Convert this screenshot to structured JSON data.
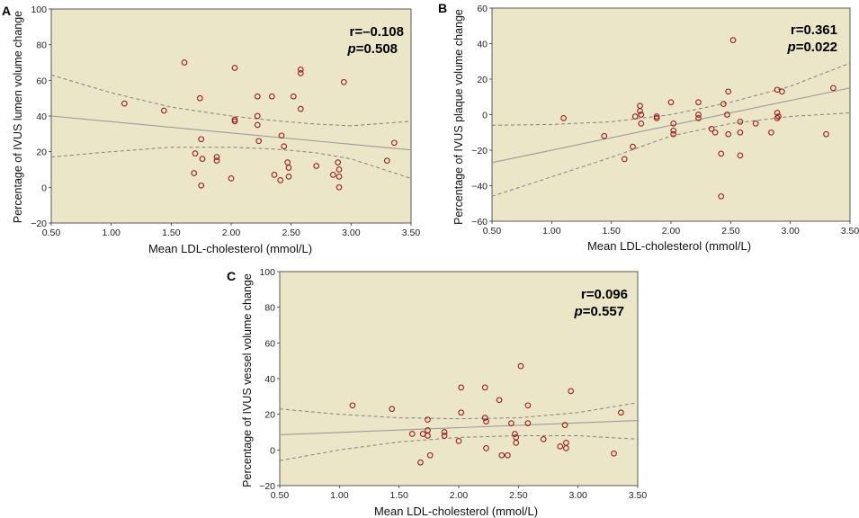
{
  "colors": {
    "plot_bg": "#ece6c9",
    "point": "#9b1b1b",
    "fit_line": "#9a9a9a",
    "ci_line": "#808080",
    "axis": "#333333"
  },
  "chart_data": [
    {
      "panel": "A",
      "type": "scatter",
      "xlabel": "Mean LDL-cholesterol (mmol/L)",
      "ylabel": "Percentage of IVUS lumen volume change",
      "xlim": [
        0.5,
        3.5
      ],
      "ylim": [
        -20,
        100
      ],
      "xticks": [
        "0.50",
        "1.00",
        "1.50",
        "2.00",
        "2.50",
        "3.00",
        "3.50"
      ],
      "yticks": [
        "−20",
        "0",
        "20",
        "40",
        "60",
        "80",
        "100"
      ],
      "stat_r": "r=–0.108",
      "stat_p": "p",
      "stat_p_value": "=0.508",
      "fit": {
        "x": [
          0.5,
          3.5
        ],
        "y": [
          40,
          21
        ]
      },
      "ci_upper": {
        "x": [
          0.5,
          1.0,
          1.5,
          2.0,
          2.35,
          2.7,
          3.0,
          3.5
        ],
        "y": [
          63,
          53,
          45,
          40,
          37.5,
          35.5,
          34.5,
          37
        ]
      },
      "ci_lower": {
        "x": [
          0.5,
          1.0,
          1.5,
          2.0,
          2.35,
          2.7,
          3.0,
          3.5
        ],
        "y": [
          17,
          20,
          22.5,
          22.5,
          21.5,
          19.5,
          16,
          5
        ]
      },
      "points": [
        [
          1.11,
          47
        ],
        [
          1.44,
          43
        ],
        [
          1.61,
          70
        ],
        [
          1.69,
          8
        ],
        [
          1.7,
          19
        ],
        [
          1.74,
          50
        ],
        [
          1.75,
          27
        ],
        [
          1.75,
          1
        ],
        [
          1.76,
          16
        ],
        [
          1.88,
          17
        ],
        [
          1.88,
          15
        ],
        [
          2.0,
          5
        ],
        [
          2.03,
          67
        ],
        [
          2.03,
          38
        ],
        [
          2.03,
          37
        ],
        [
          2.22,
          51
        ],
        [
          2.22,
          40
        ],
        [
          2.22,
          35
        ],
        [
          2.23,
          26
        ],
        [
          2.34,
          51
        ],
        [
          2.36,
          7
        ],
        [
          2.41,
          4
        ],
        [
          2.42,
          29
        ],
        [
          2.44,
          23
        ],
        [
          2.47,
          14
        ],
        [
          2.48,
          11
        ],
        [
          2.48,
          6
        ],
        [
          2.52,
          51
        ],
        [
          2.58,
          66
        ],
        [
          2.58,
          64
        ],
        [
          2.58,
          44
        ],
        [
          2.71,
          12
        ],
        [
          2.85,
          7
        ],
        [
          2.89,
          14
        ],
        [
          2.9,
          10
        ],
        [
          2.9,
          6
        ],
        [
          2.9,
          0
        ],
        [
          2.94,
          59
        ],
        [
          3.3,
          15
        ],
        [
          3.36,
          25
        ]
      ]
    },
    {
      "panel": "B",
      "type": "scatter",
      "xlabel": "Mean LDL-cholesterol (mmol/L)",
      "ylabel": "Percentage of IVUS plaque volume change",
      "xlim": [
        0.5,
        3.5
      ],
      "ylim": [
        -60,
        60
      ],
      "xticks": [
        "0.50",
        "1.00",
        "1.50",
        "2.00",
        "2.50",
        "3.00",
        "3.50"
      ],
      "yticks": [
        "−60",
        "−40",
        "−20",
        "0",
        "20",
        "40",
        "60"
      ],
      "stat_r": "r=0.361",
      "stat_p": "p",
      "stat_p_value": "=0.022",
      "fit": {
        "x": [
          0.5,
          3.5
        ],
        "y": [
          -27,
          15
        ]
      },
      "ci_upper": {
        "x": [
          0.5,
          1.0,
          1.5,
          2.0,
          2.5,
          3.0,
          3.5
        ],
        "y": [
          -6,
          -5.5,
          -4,
          0,
          7,
          16,
          29
        ]
      },
      "ci_lower": {
        "x": [
          0.5,
          1.0,
          1.5,
          2.0,
          2.5,
          3.0,
          3.5
        ],
        "y": [
          -46,
          -35,
          -24,
          -12,
          -5,
          -1,
          1
        ]
      },
      "points": [
        [
          1.1,
          -2
        ],
        [
          1.44,
          -12
        ],
        [
          1.61,
          -25
        ],
        [
          1.68,
          -18
        ],
        [
          1.7,
          -1
        ],
        [
          1.74,
          5
        ],
        [
          1.74,
          2
        ],
        [
          1.75,
          0
        ],
        [
          1.75,
          -5
        ],
        [
          1.88,
          -1
        ],
        [
          1.88,
          -2
        ],
        [
          2.0,
          7
        ],
        [
          2.02,
          -5
        ],
        [
          2.02,
          -9
        ],
        [
          2.02,
          -11
        ],
        [
          2.23,
          7
        ],
        [
          2.23,
          0
        ],
        [
          2.23,
          -2
        ],
        [
          2.34,
          -8
        ],
        [
          2.37,
          -10
        ],
        [
          2.42,
          -22
        ],
        [
          2.42,
          -46
        ],
        [
          2.44,
          6
        ],
        [
          2.47,
          0
        ],
        [
          2.48,
          13
        ],
        [
          2.48,
          -11
        ],
        [
          2.52,
          42
        ],
        [
          2.58,
          -4
        ],
        [
          2.58,
          -10
        ],
        [
          2.58,
          -23
        ],
        [
          2.71,
          -5
        ],
        [
          2.84,
          -10
        ],
        [
          2.89,
          14
        ],
        [
          2.89,
          1
        ],
        [
          2.89,
          -2
        ],
        [
          2.9,
          -1
        ],
        [
          2.93,
          13
        ],
        [
          3.3,
          -11
        ],
        [
          3.36,
          15
        ]
      ]
    },
    {
      "panel": "C",
      "type": "scatter",
      "xlabel": "Mean LDL-cholesterol (mmol/L)",
      "ylabel": "Percentage of IVUS vessel volume change",
      "xlim": [
        0.5,
        3.5
      ],
      "ylim": [
        -20,
        100
      ],
      "xticks": [
        "0.50",
        "1.00",
        "1.50",
        "2.00",
        "2.50",
        "3.00",
        "3.50"
      ],
      "yticks": [
        "−20",
        "0",
        "20",
        "40",
        "60",
        "80",
        "100"
      ],
      "stat_r": "r=0.096",
      "stat_p": "p",
      "stat_p_value": "=0.557",
      "fit": {
        "x": [
          0.5,
          3.5
        ],
        "y": [
          8.5,
          16.5
        ]
      },
      "ci_upper": {
        "x": [
          0.5,
          1.0,
          1.5,
          2.0,
          2.5,
          3.0,
          3.5
        ],
        "y": [
          23,
          20,
          18,
          17.5,
          18,
          21,
          26.5
        ]
      },
      "ci_lower": {
        "x": [
          0.5,
          1.0,
          1.5,
          2.0,
          2.5,
          3.0,
          3.5
        ],
        "y": [
          -6,
          0,
          4.5,
          7,
          8,
          8,
          6
        ]
      },
      "points": [
        [
          1.11,
          25
        ],
        [
          1.44,
          23
        ],
        [
          1.61,
          9
        ],
        [
          1.68,
          -7
        ],
        [
          1.7,
          9
        ],
        [
          1.74,
          17
        ],
        [
          1.74,
          11
        ],
        [
          1.74,
          8
        ],
        [
          1.76,
          -3
        ],
        [
          1.88,
          10
        ],
        [
          1.88,
          8
        ],
        [
          2.0,
          5
        ],
        [
          2.02,
          35
        ],
        [
          2.02,
          21
        ],
        [
          2.22,
          35
        ],
        [
          2.22,
          18
        ],
        [
          2.23,
          16
        ],
        [
          2.23,
          1
        ],
        [
          2.34,
          28
        ],
        [
          2.36,
          -3
        ],
        [
          2.41,
          -3
        ],
        [
          2.44,
          15
        ],
        [
          2.47,
          9
        ],
        [
          2.48,
          7
        ],
        [
          2.48,
          4
        ],
        [
          2.52,
          47
        ],
        [
          2.58,
          25
        ],
        [
          2.58,
          15
        ],
        [
          2.71,
          6
        ],
        [
          2.85,
          2
        ],
        [
          2.89,
          14
        ],
        [
          2.9,
          4
        ],
        [
          2.9,
          1
        ],
        [
          2.94,
          33
        ],
        [
          3.3,
          -2
        ],
        [
          3.36,
          21
        ]
      ]
    }
  ]
}
